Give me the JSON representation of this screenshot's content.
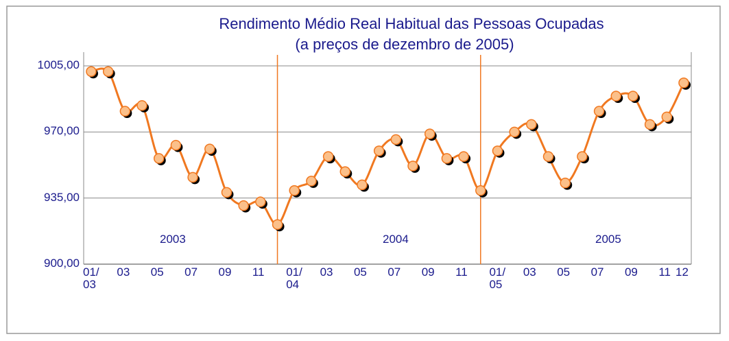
{
  "chart_data": {
    "type": "line",
    "title": "Rendimento Médio Real Habitual das Pessoas Ocupadas",
    "subtitle": "(a preços de dezembro de 2005)",
    "categories": [
      "01/\n03",
      null,
      "03",
      null,
      "05",
      null,
      "07",
      null,
      "09",
      null,
      "11",
      null,
      "01/\n04",
      null,
      "03",
      null,
      "05",
      null,
      "07",
      null,
      "09",
      null,
      "11",
      null,
      "01/\n05",
      null,
      "03",
      null,
      "05",
      null,
      "07",
      null,
      "09",
      null,
      "11",
      "12"
    ],
    "series": [
      {
        "name": "Rendimento",
        "color": "#f07820",
        "marker_color": "#fbc08a",
        "values": [
          1002,
          1002,
          981,
          984,
          956,
          963,
          946,
          961,
          938,
          931,
          933,
          921,
          939,
          944,
          957,
          949,
          942,
          960,
          966,
          952,
          969,
          956,
          957,
          939,
          960,
          970,
          974,
          957,
          943,
          957,
          981,
          989,
          989,
          974,
          978,
          996
        ]
      }
    ],
    "annotations": [
      "2003",
      "2004",
      "2005"
    ],
    "ylim": [
      900,
      1005
    ],
    "yticks": [
      {
        "value": 900,
        "label": "900,00"
      },
      {
        "value": 935,
        "label": "935,00"
      },
      {
        "value": 970,
        "label": "970,00"
      },
      {
        "value": 1005,
        "label": "1005,00"
      }
    ],
    "grid": true
  }
}
